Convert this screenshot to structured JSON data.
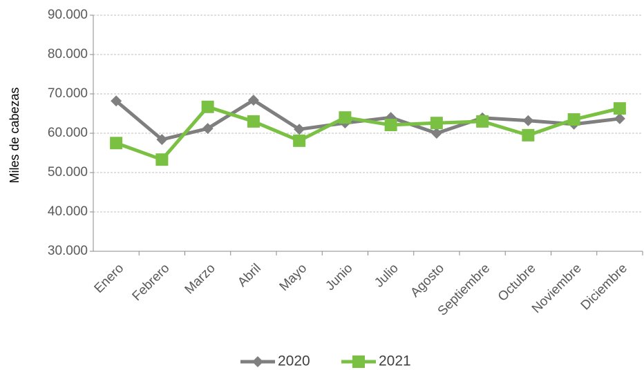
{
  "chart_data": {
    "type": "line",
    "y_label": "Miles de cabezas",
    "categories": [
      "Enero",
      "Febrero",
      "Marzo",
      "Abril",
      "Mayo",
      "Junio",
      "Julio",
      "Agosto",
      "Septiembre",
      "Octubre",
      "Noviembre",
      "Diciembre"
    ],
    "series": [
      {
        "name": "2020",
        "color": "#7f7f7f",
        "marker": "diamond",
        "values": [
          68200,
          58400,
          61200,
          68400,
          61000,
          62600,
          64000,
          60000,
          63900,
          63200,
          62300,
          63700
        ]
      },
      {
        "name": "2021",
        "color": "#7ac143",
        "marker": "square",
        "values": [
          57500,
          53300,
          66700,
          63000,
          58100,
          64000,
          62100,
          62600,
          63000,
          59500,
          63500,
          66300
        ]
      }
    ],
    "ylim": [
      30000,
      90000
    ],
    "yticks": [
      {
        "value": 30000,
        "label": "30.000"
      },
      {
        "value": 40000,
        "label": "40.000"
      },
      {
        "value": 50000,
        "label": "50.000"
      },
      {
        "value": 60000,
        "label": "60.000"
      },
      {
        "value": 70000,
        "label": "70.000"
      },
      {
        "value": 80000,
        "label": "80.000"
      },
      {
        "value": 90000,
        "label": "90.000"
      }
    ],
    "grid": true,
    "legend": "bottom"
  }
}
